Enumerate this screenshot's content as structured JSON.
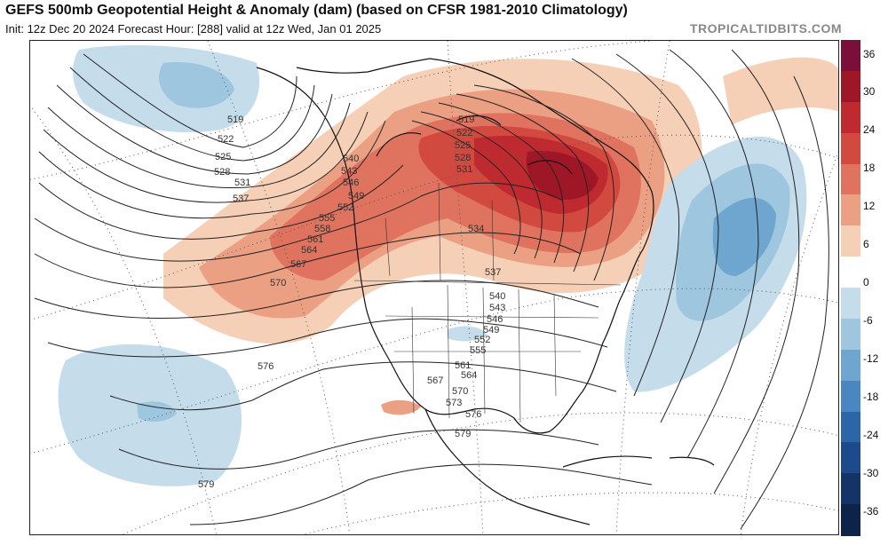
{
  "header": {
    "title": "GEFS 500mb Geopotential Height & Anomaly (dam) (based on CFSR 1981-2010 Climatology)",
    "subtitle": "Init: 12z Dec 20 2024   Forecast Hour: [288]   valid at 12z Wed, Jan 01 2025",
    "brand": "TROPICALTIDBITS.COM"
  },
  "colorbar": {
    "labels": [
      "36",
      "30",
      "24",
      "18",
      "12",
      "6",
      "0",
      "-6",
      "-12",
      "-18",
      "-24",
      "-30",
      "-36"
    ],
    "colors": [
      "#7b0f3a",
      "#9e1726",
      "#be2a2f",
      "#d24a3f",
      "#e0735f",
      "#eca083",
      "#f6cfb7",
      "#ffffff",
      "#c5dcea",
      "#9ec6df",
      "#6fa6d0",
      "#4a86c0",
      "#2d66a8",
      "#1c4a8a",
      "#143468",
      "#0e2349"
    ]
  },
  "contours": {
    "west": [
      "519",
      "522",
      "525",
      "528",
      "531",
      "537"
    ],
    "coast": [
      "540",
      "543",
      "546",
      "549",
      "552",
      "555",
      "558",
      "561",
      "564",
      "567",
      "570"
    ],
    "pacific": [
      "576",
      "579"
    ],
    "canada": [
      "519",
      "522",
      "525",
      "528",
      "531",
      "534",
      "537"
    ],
    "east": [
      "540",
      "543",
      "546",
      "549",
      "552",
      "555",
      "561",
      "564",
      "567",
      "570",
      "573",
      "576",
      "579"
    ]
  }
}
